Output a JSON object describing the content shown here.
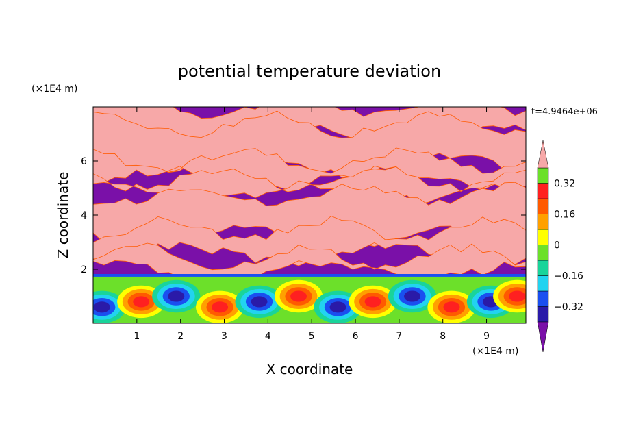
{
  "chart_data": {
    "type": "heatmap",
    "title": "potential temperature deviation",
    "xlabel": "X coordinate",
    "ylabel": "Z coordinate",
    "x_unit": "(×1E4 m)",
    "y_unit": "(×1E4 m)",
    "time_label": "t=4.9464e+06",
    "xlim": [
      0,
      9.9
    ],
    "ylim": [
      0,
      8
    ],
    "x_ticks": [
      1,
      2,
      3,
      4,
      5,
      6,
      7,
      8,
      9
    ],
    "y_ticks": [
      2,
      4,
      6
    ],
    "x_tick_labels": [
      "1",
      "2",
      "3",
      "4",
      "5",
      "6",
      "7",
      "8",
      "9"
    ],
    "y_tick_labels": [
      "2",
      "4",
      "6"
    ],
    "colorbar": {
      "levels": [
        -0.4,
        -0.32,
        -0.24,
        -0.16,
        -0.08,
        0,
        0.08,
        0.16,
        0.24,
        0.32,
        0.4
      ],
      "tick_labels": [
        "0.32",
        "0.16",
        "0",
        "−0.16",
        "−0.32"
      ],
      "tick_values": [
        0.32,
        0.16,
        0,
        -0.16,
        -0.32
      ],
      "colors": [
        "#7a10a8",
        "#2a1aa8",
        "#1a4ff0",
        "#22d3f0",
        "#19d49a",
        "#6ce02a",
        "#ffff00",
        "#ffa000",
        "#ff5a00",
        "#ff2020",
        "#f7a8a8"
      ],
      "extend": "both"
    },
    "upper_layer_pattern": "alternating bands of pink (above 0.4) and purple (below -0.4) between z≈1.8 and z≈8",
    "lower_layer_pattern": "turbulent eddies with values between -0.4 and 0.4 below z≈1.8"
  }
}
